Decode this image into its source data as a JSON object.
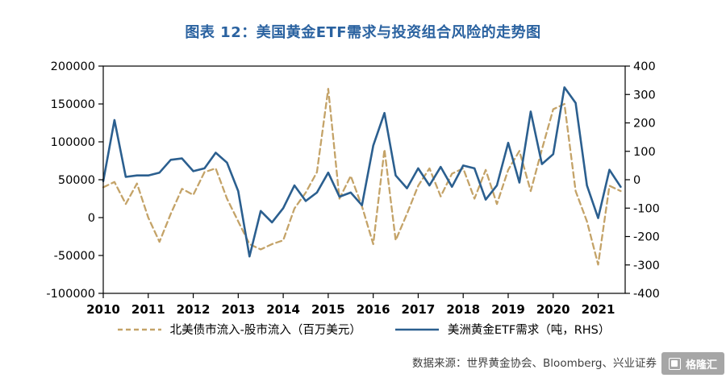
{
  "chart_data": {
    "type": "line",
    "title": "图表 12：美国黄金ETF需求与投资组合风险的走势图",
    "title_color": "#2A62A0",
    "xlabel": "",
    "ylabel": "",
    "grid": false,
    "legend_position": "bottom",
    "xlim": [
      2010,
      2021.6
    ],
    "x_ticks": [
      "2010",
      "2011",
      "2012",
      "2013",
      "2014",
      "2015",
      "2016",
      "2017",
      "2018",
      "2019",
      "2020",
      "2021"
    ],
    "left_axis": {
      "min": -100000,
      "max": 200000,
      "ticks": [
        200000,
        150000,
        100000,
        50000,
        0,
        -50000,
        -100000
      ]
    },
    "right_axis": {
      "min": -400,
      "max": 400,
      "ticks": [
        400,
        300,
        200,
        100,
        0,
        -100,
        -200,
        -300,
        -400
      ]
    },
    "x": [
      2010,
      2010.25,
      2010.5,
      2010.75,
      2011,
      2011.25,
      2011.5,
      2011.75,
      2012,
      2012.25,
      2012.5,
      2012.75,
      2013,
      2013.25,
      2013.5,
      2013.75,
      2014,
      2014.25,
      2014.5,
      2014.75,
      2015,
      2015.25,
      2015.5,
      2015.75,
      2016,
      2016.25,
      2016.5,
      2016.75,
      2017,
      2017.25,
      2017.5,
      2017.75,
      2018,
      2018.25,
      2018.5,
      2018.75,
      2019,
      2019.25,
      2019.5,
      2019.75,
      2020,
      2020.25,
      2020.5,
      2020.75,
      2021,
      2021.25,
      2021.5
    ],
    "series": [
      {
        "name": "北美债市流入-股市流入（百万美元）",
        "axis": "left",
        "line_style": "dashed",
        "color": "#C4A368",
        "values": [
          40000,
          47000,
          18000,
          45000,
          0,
          -32000,
          5000,
          38000,
          30000,
          60000,
          65000,
          25000,
          -5000,
          -35000,
          -42000,
          -35000,
          -30000,
          12000,
          33000,
          60000,
          170000,
          25000,
          55000,
          15000,
          -35000,
          90000,
          -30000,
          5000,
          42000,
          65000,
          28000,
          58000,
          65000,
          25000,
          63000,
          18000,
          63000,
          88000,
          35000,
          90000,
          143000,
          150000,
          35000,
          -5000,
          -62000,
          42000,
          35000
        ]
      },
      {
        "name": "美洲黄金ETF需求（吨，RHS）",
        "axis": "right",
        "line_style": "solid",
        "color": "#2B5F8F",
        "values": [
          -5,
          210,
          10,
          15,
          15,
          25,
          70,
          75,
          30,
          40,
          95,
          60,
          -40,
          -270,
          -110,
          -150,
          -100,
          -20,
          -75,
          -45,
          25,
          -60,
          -45,
          -90,
          120,
          235,
          15,
          -30,
          40,
          -20,
          45,
          -25,
          50,
          40,
          -70,
          -20,
          130,
          -10,
          240,
          55,
          90,
          325,
          270,
          -20,
          -135,
          35,
          -25
        ]
      }
    ]
  },
  "footer": {
    "source": "数据来源：世界黄金协会、Bloomberg、兴业证券",
    "watermark": "格隆汇"
  }
}
